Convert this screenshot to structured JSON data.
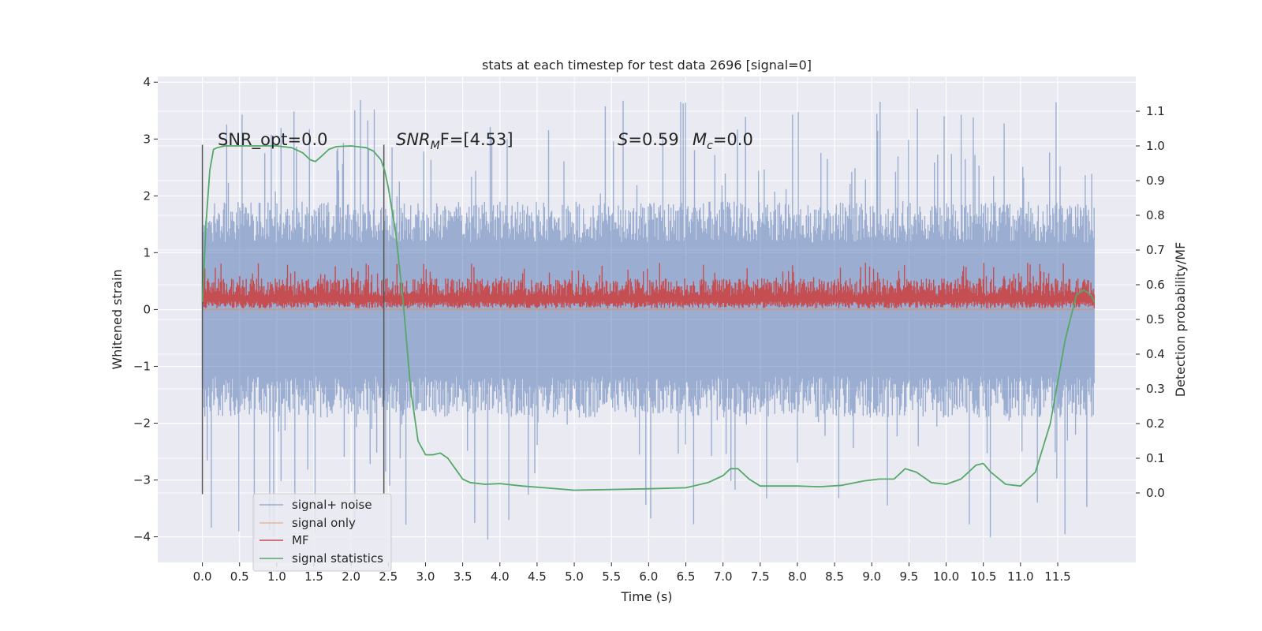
{
  "chart_data": {
    "type": "line",
    "title": "stats at each timestep for test data 2696 [signal=0]",
    "xlabel": "Time (s)",
    "ylabel": "Whitened strain",
    "ylabel_right": "Detection probability/MF",
    "xlim": [
      -0.6,
      12.55
    ],
    "ylim": [
      -4.45,
      4.1
    ],
    "ylim_right": [
      -0.2,
      1.2
    ],
    "x_ticks": [
      0.0,
      0.5,
      1.0,
      1.5,
      2.0,
      2.5,
      3.0,
      3.5,
      4.0,
      4.5,
      5.0,
      5.5,
      6.0,
      6.5,
      7.0,
      7.5,
      8.0,
      8.5,
      9.0,
      9.5,
      10.0,
      10.5,
      11.0,
      11.5
    ],
    "x_tick_labels": [
      "0.0",
      "0.5",
      "1.0",
      "1.5",
      "2.0",
      "2.5",
      "3.0",
      "3.5",
      "4.0",
      "4.5",
      "5.0",
      "5.5",
      "6.0",
      "6.5",
      "7.0",
      "7.5",
      "8.0",
      "8.5",
      "9.0",
      "9.5",
      "10.0",
      "10.5",
      "11.0",
      "11.5"
    ],
    "y_ticks": [
      4,
      3,
      2,
      1,
      0,
      -1,
      -2,
      -3,
      -4
    ],
    "y_tick_labels": [
      "4",
      "3",
      "2",
      "1",
      "0",
      "−1",
      "−2",
      "−3",
      "−4"
    ],
    "y_right_ticks": [
      1.1,
      1.0,
      0.9,
      0.8,
      0.7,
      0.6,
      0.5,
      0.4,
      0.3,
      0.2,
      0.1,
      0.0
    ],
    "y_right_tick_labels": [
      "1.1",
      "1.0",
      "0.9",
      "0.8",
      "0.7",
      "0.6",
      "0.5",
      "0.4",
      "0.3",
      "0.2",
      "0.1",
      "0.0"
    ],
    "grid": true,
    "legend_position": "lower-left",
    "noise": {
      "x_start": 0.0,
      "x_end": 11.99,
      "band": [
        -1.9,
        1.9
      ],
      "extreme_max": 3.7,
      "extreme_min": -4.07
    },
    "mf": {
      "x_start": 0.0,
      "x_end": 11.99,
      "baseline": 0.02,
      "band": [
        0.0,
        0.55
      ],
      "peak": 1.01
    },
    "signal_only": {
      "x_start": 0.0,
      "x_end": 11.99,
      "value": 0.0
    },
    "window_markers": [
      {
        "x": 0.0,
        "y_range": [
          -3.25,
          2.9
        ]
      },
      {
        "x": 2.44,
        "y_range": [
          -3.25,
          2.9
        ]
      }
    ],
    "series": [
      {
        "name": "signal+ noise",
        "color": "#4c72b0",
        "axis": "left",
        "style": "dense-noise"
      },
      {
        "name": "signal only",
        "color": "#dd8452",
        "axis": "left",
        "style": "line"
      },
      {
        "name": "MF",
        "color": "#c44e52",
        "axis": "left",
        "style": "dense-noise"
      },
      {
        "name": "signal statistics",
        "color": "#55a868",
        "axis": "right",
        "style": "line",
        "x": [
          0.0,
          0.05,
          0.1,
          0.15,
          0.2,
          0.3,
          0.5,
          0.8,
          1.0,
          1.2,
          1.35,
          1.45,
          1.52,
          1.6,
          1.7,
          1.8,
          2.0,
          2.2,
          2.3,
          2.4,
          2.45,
          2.5,
          2.6,
          2.7,
          2.8,
          2.9,
          3.0,
          3.1,
          3.2,
          3.3,
          3.4,
          3.5,
          3.6,
          3.8,
          4.0,
          4.3,
          4.6,
          5.0,
          5.5,
          6.0,
          6.5,
          6.8,
          7.0,
          7.1,
          7.2,
          7.35,
          7.5,
          7.7,
          8.0,
          8.3,
          8.6,
          8.9,
          9.1,
          9.3,
          9.45,
          9.6,
          9.8,
          10.0,
          10.2,
          10.4,
          10.5,
          10.6,
          10.8,
          11.0,
          11.2,
          11.4,
          11.6,
          11.75,
          11.85,
          11.95,
          11.99
        ],
        "y": [
          0.55,
          0.78,
          0.93,
          0.99,
          0.995,
          1.0,
          1.0,
          1.0,
          1.0,
          0.995,
          0.98,
          0.96,
          0.955,
          0.97,
          0.99,
          0.998,
          1.0,
          0.995,
          0.985,
          0.96,
          0.93,
          0.88,
          0.75,
          0.55,
          0.3,
          0.15,
          0.11,
          0.11,
          0.115,
          0.1,
          0.07,
          0.04,
          0.03,
          0.025,
          0.027,
          0.02,
          0.015,
          0.008,
          0.01,
          0.012,
          0.015,
          0.03,
          0.05,
          0.07,
          0.07,
          0.04,
          0.02,
          0.02,
          0.02,
          0.018,
          0.022,
          0.035,
          0.04,
          0.04,
          0.07,
          0.06,
          0.03,
          0.025,
          0.04,
          0.08,
          0.085,
          0.06,
          0.025,
          0.02,
          0.06,
          0.2,
          0.44,
          0.57,
          0.585,
          0.57,
          0.55
        ]
      }
    ],
    "annotations": [
      {
        "id": "snr_opt",
        "x": 0.2,
        "y": 2.88,
        "text": "SNR_opt=0.0"
      },
      {
        "id": "snr_mf",
        "x": 2.6,
        "y": 2.88,
        "text": "SNR_MF=[4.53]"
      },
      {
        "id": "s_mc",
        "x": 5.6,
        "y": 2.88,
        "text": "S=0.59   M_c=0.0"
      }
    ],
    "annotation_display": {
      "snr_mf": {
        "main": "SNR",
        "sub": "M",
        "tail": "F=[4.53]"
      },
      "s": {
        "main": "S",
        "tail": "=0.59"
      },
      "mc": {
        "main": "M",
        "sub": "c",
        "tail": "=0.0"
      }
    }
  },
  "colors": {
    "figure_background": "#ffffff",
    "plot_background": "#eaeaf2",
    "grid": "#ffffff",
    "marker_line": "#555555",
    "text": "#262626"
  }
}
